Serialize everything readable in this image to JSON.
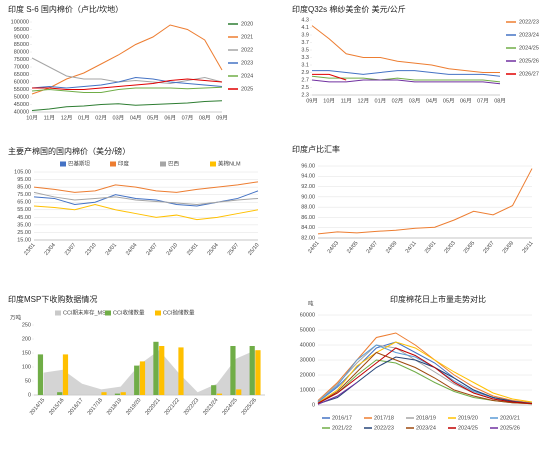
{
  "chart_data": [
    {
      "type": "line",
      "title": "印度 S-6 国内棉价（卢比/坎地）",
      "legend": "right",
      "categories": [
        "10月",
        "11月",
        "12月",
        "01月",
        "02月",
        "03月",
        "04月",
        "05月",
        "06月",
        "07月",
        "08月",
        "09月"
      ],
      "ylim": [
        40000,
        100000
      ],
      "yticks": [
        40000,
        45000,
        50000,
        55000,
        60000,
        65000,
        70000,
        75000,
        80000,
        85000,
        90000,
        95000,
        100000
      ],
      "grid": false,
      "series": [
        {
          "name": "2020",
          "color": "#2e7d32",
          "values": [
            41000,
            42000,
            43500,
            44000,
            45000,
            45500,
            44500,
            45000,
            45500,
            46000,
            47000,
            47500
          ]
        },
        {
          "name": "2021",
          "color": "#ed7d31",
          "values": [
            52000,
            56000,
            62000,
            66000,
            72000,
            78000,
            85000,
            90000,
            98000,
            95000,
            88000,
            68000
          ]
        },
        {
          "name": "2022",
          "color": "#a5a5a5",
          "values": [
            76000,
            70000,
            64000,
            62000,
            62000,
            60000,
            61000,
            60000,
            59000,
            61000,
            63000,
            60000
          ]
        },
        {
          "name": "2023",
          "color": "#4472c4",
          "values": [
            56000,
            57000,
            56000,
            57000,
            58000,
            60000,
            63000,
            62000,
            60000,
            59000,
            58000,
            57000
          ]
        },
        {
          "name": "2024",
          "color": "#70ad47",
          "values": [
            54000,
            55000,
            54000,
            53000,
            53000,
            55000,
            56000,
            56000,
            56000,
            55500,
            56000,
            56500
          ]
        },
        {
          "name": "2025",
          "color": "#e00000",
          "values": [
            56000,
            56000,
            55000,
            55000,
            56000,
            57000,
            58000,
            59000,
            61000,
            62000,
            61000,
            60000
          ]
        }
      ]
    },
    {
      "type": "line",
      "title": "印度Q32s 棉纱美金价  美元/公斤",
      "legend": "right",
      "categories": [
        "09月",
        "10月",
        "11月",
        "12月",
        "01月",
        "02月",
        "03月",
        "04月",
        "05月",
        "06月",
        "07月",
        "08月"
      ],
      "ylim": [
        2.3,
        4.3
      ],
      "yticks": [
        2.3,
        2.5,
        2.7,
        2.9,
        3.1,
        3.3,
        3.5,
        3.7,
        3.9,
        4.1,
        4.3
      ],
      "grid": false,
      "series": [
        {
          "name": "2022/23",
          "color": "#ed7d31",
          "values": [
            4.15,
            3.8,
            3.4,
            3.3,
            3.3,
            3.2,
            3.15,
            3.1,
            3.0,
            2.95,
            2.9,
            2.9
          ]
        },
        {
          "name": "2023/24",
          "color": "#4472c4",
          "values": [
            2.95,
            2.95,
            2.9,
            2.85,
            2.9,
            2.95,
            2.95,
            2.9,
            2.85,
            2.85,
            2.85,
            2.8
          ]
        },
        {
          "name": "2024/25",
          "color": "#70ad47",
          "values": [
            2.8,
            2.75,
            2.75,
            2.75,
            2.7,
            2.75,
            2.7,
            2.7,
            2.7,
            2.7,
            2.7,
            2.65
          ]
        },
        {
          "name": "2025/26",
          "color": "#7030a0",
          "values": [
            2.7,
            2.65,
            2.65,
            2.7,
            2.7,
            2.7,
            2.65,
            2.65,
            2.65,
            2.65,
            2.65,
            2.6
          ]
        },
        {
          "name": "2026/27",
          "color": "#e00000",
          "values": [
            2.85,
            2.85,
            2.7,
            null,
            null,
            null,
            null,
            null,
            null,
            null,
            null,
            null
          ]
        }
      ]
    },
    {
      "type": "line",
      "title": "主要产棉国的国内棉价（美分/磅）",
      "legend": "top",
      "categories": [
        "23/01",
        "23/04",
        "23/07",
        "23/10",
        "24/01",
        "24/04",
        "24/07",
        "24/10",
        "25/01",
        "25/04",
        "25/07",
        "25/10"
      ],
      "ylim": [
        15,
        105
      ],
      "grid": true,
      "yticks": [
        {
          "value": 15,
          "label": "15.00"
        },
        {
          "value": 25,
          "label": "25.00"
        },
        {
          "value": 35,
          "label": "35.00"
        },
        {
          "value": 45,
          "label": "45.00"
        },
        {
          "value": 55,
          "label": "55.00"
        },
        {
          "value": 65,
          "label": "65.00"
        },
        {
          "value": 75,
          "label": "75.00"
        },
        {
          "value": 85,
          "label": "85.00"
        },
        {
          "value": 95,
          "label": "95.00"
        },
        {
          "value": 105,
          "label": "105.00"
        }
      ],
      "series": [
        {
          "name": "巴基斯坦",
          "color": "#4472c4",
          "values": [
            72,
            70,
            62,
            65,
            75,
            70,
            68,
            62,
            60,
            65,
            70,
            80
          ]
        },
        {
          "name": "印度",
          "color": "#ed7d31",
          "values": [
            85,
            82,
            78,
            80,
            88,
            85,
            80,
            78,
            82,
            85,
            88,
            92
          ]
        },
        {
          "name": "巴西",
          "color": "#a5a5a5",
          "values": [
            78,
            72,
            68,
            70,
            72,
            68,
            66,
            64,
            62,
            65,
            68,
            70
          ]
        },
        {
          "name": "美棉NLM",
          "color": "#ffc000",
          "values": [
            60,
            58,
            55,
            62,
            55,
            50,
            45,
            48,
            42,
            45,
            50,
            55
          ]
        }
      ]
    },
    {
      "type": "line",
      "title": "印度卢比汇率",
      "legend": "none",
      "categories": [
        "24/01",
        "24/03",
        "24/05",
        "24/07",
        "24/09",
        "24/11",
        "25/01",
        "25/03",
        "25/05",
        "25/07",
        "25/09",
        "25/11"
      ],
      "ylim": [
        82,
        96
      ],
      "grid": true,
      "yticks": [
        {
          "value": 82,
          "label": "82.00"
        },
        {
          "value": 84,
          "label": "84.00"
        },
        {
          "value": 86,
          "label": "86.00"
        },
        {
          "value": 88,
          "label": "88.00"
        },
        {
          "value": 90,
          "label": "90.00"
        },
        {
          "value": 92,
          "label": "92.00"
        },
        {
          "value": 94,
          "label": "94.00"
        },
        {
          "value": 96,
          "label": "96.00"
        }
      ],
      "series": [
        {
          "name": "印度卢比汇率",
          "color": "#ed7d31",
          "values": [
            82.8,
            83.2,
            83.0,
            83.3,
            83.5,
            83.9,
            84.1,
            85.5,
            87.2,
            86.5,
            88.3,
            95.5
          ]
        }
      ]
    },
    {
      "type": "bar",
      "title": "印度MSP下收购数据情况",
      "y_label": "万吨",
      "legend": "top",
      "categories": [
        "2014/15",
        "2015/16",
        "2016/17",
        "2017/18",
        "2018/19",
        "2019/20",
        "2020/21",
        "2021/22",
        "2022/23",
        "2023/24",
        "2024/25",
        "2025/26"
      ],
      "ylim": [
        0,
        250
      ],
      "yticks": [
        0,
        50,
        100,
        150,
        200,
        250
      ],
      "grid": false,
      "series": [
        {
          "name": "CCI期末库存_MSP",
          "color": "#c9c9c9",
          "type": "area",
          "values": [
            80,
            90,
            40,
            20,
            30,
            110,
            160,
            80,
            10,
            40,
            130,
            160
          ]
        },
        {
          "name": "CCI收储数量",
          "color": "#70ad47",
          "values": [
            145,
            10,
            0,
            0,
            5,
            105,
            190,
            0,
            0,
            35,
            175,
            175
          ]
        },
        {
          "name": "CCI抛储数量",
          "color": "#ffc000",
          "values": [
            0,
            145,
            0,
            10,
            10,
            120,
            175,
            170,
            0,
            5,
            20,
            160
          ]
        }
      ]
    },
    {
      "type": "line",
      "title": "印度棉花日上市量走势对比",
      "y_label": "吨",
      "legend": "bottom",
      "ylim": [
        0,
        60000
      ],
      "yticks": [
        0,
        10000,
        20000,
        30000,
        40000,
        50000,
        60000
      ],
      "grid": true,
      "series": [
        {
          "name": "2016/17",
          "color": "#4472c4",
          "values": [
            2000,
            12000,
            25000,
            38000,
            42000,
            35000,
            28000,
            18000,
            10000,
            5000,
            2000,
            1000
          ]
        },
        {
          "name": "2017/18",
          "color": "#ed7d31",
          "values": [
            3000,
            15000,
            30000,
            45000,
            48000,
            40000,
            30000,
            20000,
            12000,
            6000,
            3000,
            1500
          ]
        },
        {
          "name": "2018/19",
          "color": "#a5a5a5",
          "values": [
            2500,
            14000,
            28000,
            40000,
            38000,
            30000,
            22000,
            14000,
            8000,
            4000,
            2000,
            1000
          ]
        },
        {
          "name": "2019/20",
          "color": "#ffc000",
          "values": [
            1500,
            10000,
            26000,
            35000,
            42000,
            38000,
            30000,
            22000,
            15000,
            8000,
            4000,
            2000
          ]
        },
        {
          "name": "2020/21",
          "color": "#5b9bd5",
          "values": [
            2000,
            13000,
            30000,
            40000,
            35000,
            32000,
            25000,
            16000,
            9000,
            5000,
            2500,
            1200
          ]
        },
        {
          "name": "2021/22",
          "color": "#70ad47",
          "values": [
            1000,
            8000,
            20000,
            30000,
            28000,
            22000,
            15000,
            9000,
            5000,
            3000,
            1500,
            800
          ]
        },
        {
          "name": "2022/23",
          "color": "#264478",
          "values": [
            800,
            5000,
            15000,
            25000,
            32000,
            30000,
            25000,
            18000,
            10000,
            5000,
            2500,
            1000
          ]
        },
        {
          "name": "2023/24",
          "color": "#9e480e",
          "values": [
            1000,
            9000,
            22000,
            35000,
            30000,
            25000,
            18000,
            10000,
            6000,
            3000,
            1500,
            800
          ]
        },
        {
          "name": "2024/25",
          "color": "#c00000",
          "values": [
            1200,
            8000,
            18000,
            28000,
            38000,
            33000,
            25000,
            15000,
            8000,
            4000,
            2000,
            900
          ]
        },
        {
          "name": "2025/26",
          "color": "#7030a0",
          "values": [
            500,
            6000,
            15000,
            null,
            null,
            null,
            null,
            null,
            null,
            null,
            null,
            null
          ]
        }
      ]
    }
  ]
}
